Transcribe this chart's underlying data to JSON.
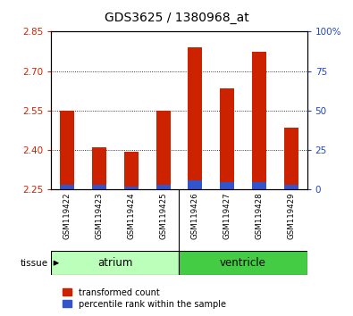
{
  "title": "GDS3625 / 1380968_at",
  "samples": [
    "GSM119422",
    "GSM119423",
    "GSM119424",
    "GSM119425",
    "GSM119426",
    "GSM119427",
    "GSM119428",
    "GSM119429"
  ],
  "transformed_counts": [
    2.55,
    2.41,
    2.395,
    2.55,
    2.79,
    2.635,
    2.775,
    2.485
  ],
  "percentile_ranks": [
    3,
    3,
    2,
    3,
    6,
    5,
    5,
    3
  ],
  "baseline": 2.25,
  "ylim_left": [
    2.25,
    2.85
  ],
  "ylim_right": [
    0,
    100
  ],
  "yticks_left": [
    2.25,
    2.4,
    2.55,
    2.7,
    2.85
  ],
  "yticks_right": [
    0,
    25,
    50,
    75,
    100
  ],
  "ytick_labels_right": [
    "0",
    "25",
    "50",
    "75",
    "100%"
  ],
  "bar_color_red": "#cc2200",
  "bar_color_blue": "#3355cc",
  "tissue_groups": [
    {
      "label": "atrium",
      "color": "#bbffbb",
      "n": 4
    },
    {
      "label": "ventricle",
      "color": "#44cc44",
      "n": 4
    }
  ],
  "tissue_label": "tissue",
  "legend_red": "transformed count",
  "legend_blue": "percentile rank within the sample",
  "bg_color": "#ffffff",
  "plot_bg": "#ffffff",
  "grid_color": "#000000",
  "tick_color_left": "#cc2200",
  "tick_color_right": "#2244cc",
  "bar_width": 0.45,
  "sample_bg_color": "#c8c8c8"
}
